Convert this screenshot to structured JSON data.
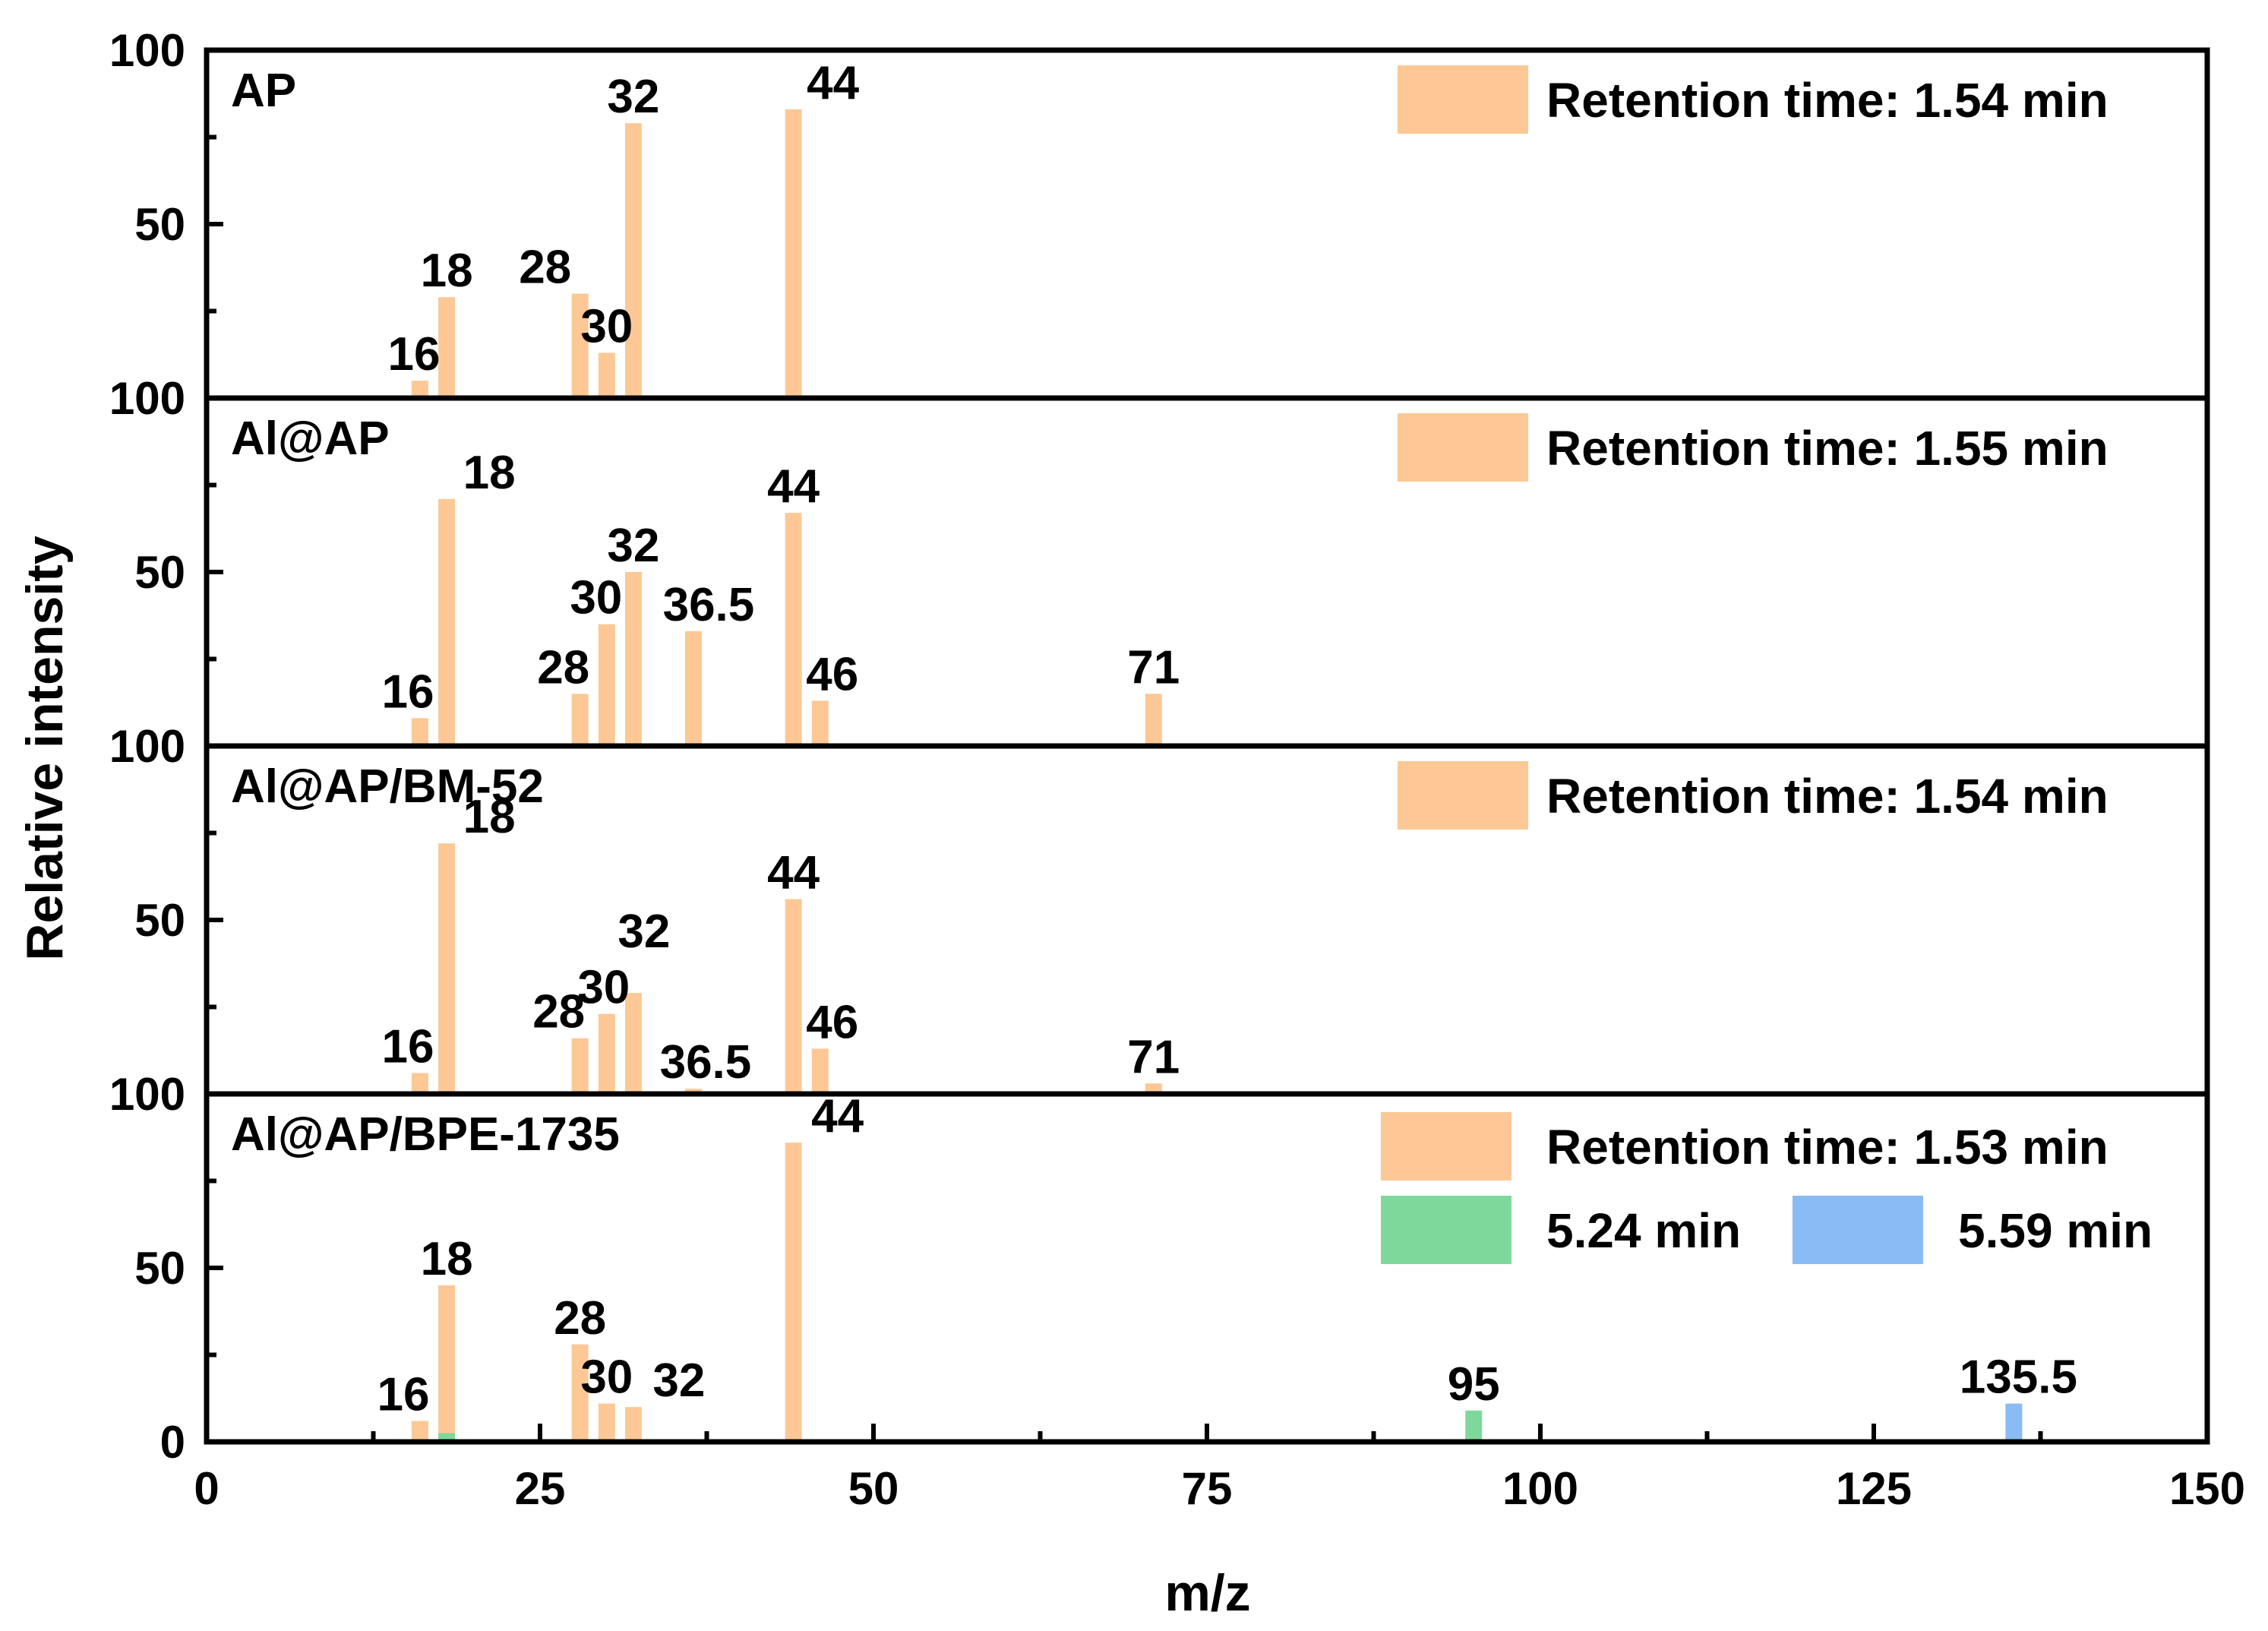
{
  "colors": {
    "orange": "#FDC895",
    "green": "#7FD89B",
    "blue": "#8ABBF4",
    "axis": "#000000"
  },
  "chart_data": {
    "type": "bar",
    "xlabel": "m/z",
    "ylabel": "Relative intensity",
    "xlim": [
      0,
      150
    ],
    "x_ticks": [
      "0",
      "25",
      "50",
      "75",
      "100",
      "125",
      "150"
    ],
    "y_ticks": [
      "0",
      "50",
      "100"
    ],
    "ylim": [
      0,
      100
    ],
    "panels": [
      {
        "title": "AP",
        "legend": [
          {
            "label": "Retention time: 1.54 min",
            "color": "orange"
          }
        ],
        "series": [
          {
            "name": "1.54 min",
            "color": "orange",
            "x": [
              16,
              18,
              28,
              30,
              32,
              44
            ],
            "y": [
              5,
              29,
              30,
              13,
              79,
              83
            ],
            "labels": [
              "16",
              "18",
              "28",
              "30",
              "32",
              "44"
            ]
          }
        ]
      },
      {
        "title": "Al@AP",
        "legend": [
          {
            "label": "Retention time: 1.55 min",
            "color": "orange"
          }
        ],
        "series": [
          {
            "name": "1.55 min",
            "color": "orange",
            "x": [
              16,
              18,
              28,
              30,
              32,
              36.5,
              44,
              46,
              71
            ],
            "y": [
              8,
              71,
              15,
              35,
              50,
              33,
              67,
              13,
              15
            ],
            "labels": [
              "16",
              "18",
              "28",
              "30",
              "32",
              "36.5",
              "44",
              "46",
              "71"
            ]
          }
        ]
      },
      {
        "title": "Al@AP/BM-52",
        "legend": [
          {
            "label": "Retention time: 1.54 min",
            "color": "orange"
          }
        ],
        "series": [
          {
            "name": "1.54 min",
            "color": "orange",
            "x": [
              16,
              18,
              28,
              30,
              32,
              36.5,
              44,
              46,
              71
            ],
            "y": [
              6,
              72,
              16,
              23,
              29,
              1.5,
              56,
              13,
              3
            ],
            "labels": [
              "16",
              "18",
              "28",
              "30",
              "32",
              "36.5",
              "44",
              "46",
              "71"
            ]
          }
        ]
      },
      {
        "title": "Al@AP/BPE-1735",
        "legend": [
          {
            "label": "Retention time: 1.53 min",
            "color": "orange"
          },
          {
            "label": "5.24 min",
            "color": "green"
          },
          {
            "label": "5.59 min",
            "color": "blue"
          }
        ],
        "series": [
          {
            "name": "1.53 min",
            "color": "orange",
            "x": [
              16,
              18,
              28,
              30,
              32,
              44
            ],
            "y": [
              6,
              45,
              28,
              11,
              10,
              86
            ],
            "labels": [
              "16",
              "18",
              "28",
              "30",
              "32",
              "44"
            ]
          },
          {
            "name": "5.24 min",
            "color": "green",
            "x": [
              18,
              95
            ],
            "y": [
              2.5,
              9
            ],
            "labels": [
              "",
              "95"
            ]
          },
          {
            "name": "5.59 min",
            "color": "blue",
            "x": [
              135.5
            ],
            "y": [
              11
            ],
            "labels": [
              "135.5"
            ]
          }
        ]
      }
    ]
  }
}
